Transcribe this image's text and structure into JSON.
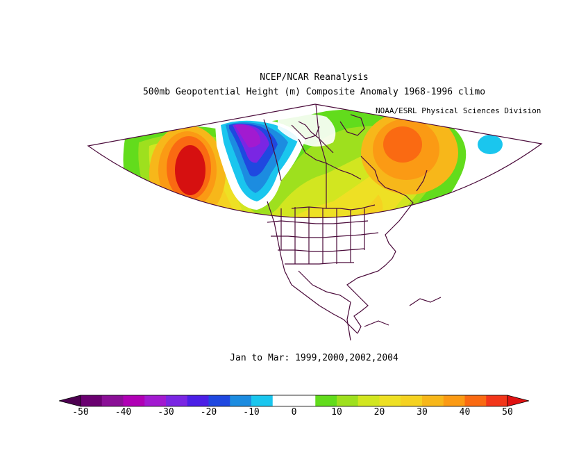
{
  "title_line1": "NCEP/NCAR Reanalysis",
  "title_line2": "500mb Geopotential Height (m) Composite Anomaly 1968-1996 climo",
  "credit": "NOAA/ESRL Physical Sciences Division",
  "period": "Jan to Mar: 1999,2000,2002,2004",
  "colorbar": {
    "colors": [
      "#6a0070",
      "#8a0f96",
      "#b000b5",
      "#a21ad0",
      "#7a26e3",
      "#4b1fe6",
      "#1f48e0",
      "#1c8ce0",
      "#1ac6ee",
      "#ffffff",
      "#ffffff",
      "#62dc1c",
      "#9ee01e",
      "#d2e620",
      "#eee024",
      "#f5d221",
      "#f7b71a",
      "#fb9a14",
      "#fa6a12",
      "#f2361a"
    ],
    "left_arrow_color": "#4d0050",
    "right_arrow_color": "#e01212",
    "ticks": [
      "-50",
      "-40",
      "-30",
      "-20",
      "-10",
      "0",
      "10",
      "20",
      "30",
      "40",
      "50"
    ]
  },
  "map": {
    "projection": "polar stereographic sector",
    "region": "North Pacific - North America - North Atlantic"
  }
}
